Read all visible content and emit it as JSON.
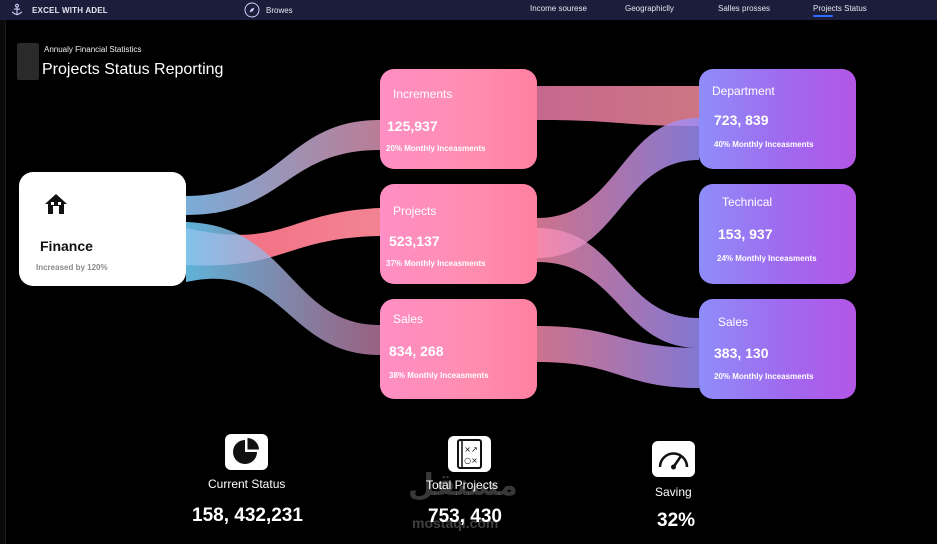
{
  "nav": {
    "brand": "EXCEL WITH ADEL",
    "browse": "Browes",
    "links": [
      "Income sourese",
      "Geographiclly",
      "Salles prosses",
      "Projects Status"
    ],
    "active_link": "Projects Status",
    "accent": "#2e6bff"
  },
  "header": {
    "subtitle": "Annualy Financial Statistics",
    "title": "Projects Status Reporting"
  },
  "finance": {
    "label": "Finance",
    "note": "Increased by 120%",
    "icon": "home-icon"
  },
  "middle": [
    {
      "label": "Increments",
      "value": "125,937",
      "note": "20% Monthly Inceasments"
    },
    {
      "label": "Projects",
      "value": "523,137",
      "note": "37% Monthly Inceasments"
    },
    {
      "label": "Sales",
      "value": "834, 268",
      "note": "38% Monthly Inceasments"
    }
  ],
  "right": [
    {
      "label": "Department",
      "value": "723, 839",
      "note": "40% Monthly Inceasments"
    },
    {
      "label": "Technical",
      "value": "153, 937",
      "note": "24% Monthly Inceasments"
    },
    {
      "label": "Sales",
      "value": "383, 130",
      "note": "20% Monthly Inceasments"
    }
  ],
  "stats": [
    {
      "label": "Current Status",
      "value": "158, 432,231",
      "icon": "pie-chart-icon"
    },
    {
      "label": "Total Projects",
      "value": "753, 430",
      "icon": "strategy-board-icon"
    },
    {
      "label": "Saving",
      "value": "32%",
      "icon": "gauge-icon"
    }
  ],
  "watermark": {
    "arabic": "مستقل",
    "latin": "mostaql.com"
  },
  "colors": {
    "background": "#000000",
    "pink_card": "#ff8db0",
    "purple_card": "#a069ee",
    "topbar": "#1b1d3a"
  }
}
